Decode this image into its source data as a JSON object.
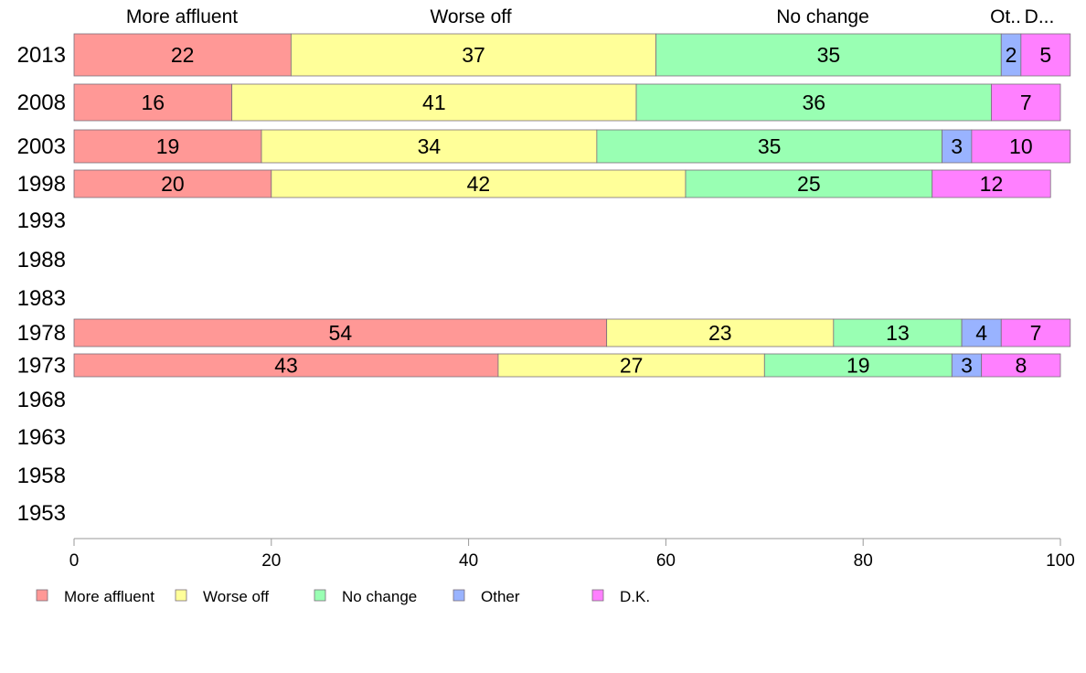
{
  "chart_data": {
    "type": "bar",
    "orientation": "horizontal",
    "stacked": true,
    "categories": [
      "2013",
      "2008",
      "2003",
      "1998",
      "1993",
      "1988",
      "1983",
      "1978",
      "1973",
      "1968",
      "1963",
      "1958",
      "1953"
    ],
    "series": [
      {
        "name": "More affluent",
        "color": "#ff9896",
        "values": [
          22,
          16,
          19,
          20,
          null,
          null,
          null,
          54,
          43,
          null,
          null,
          null,
          null
        ]
      },
      {
        "name": "Worse off",
        "color": "#ffff99",
        "values": [
          37,
          41,
          34,
          42,
          null,
          null,
          null,
          23,
          27,
          null,
          null,
          null,
          null
        ]
      },
      {
        "name": "No change",
        "color": "#99ffb3",
        "values": [
          35,
          36,
          35,
          25,
          null,
          null,
          null,
          13,
          19,
          null,
          null,
          null,
          null
        ]
      },
      {
        "name": "Other",
        "color": "#99b3ff",
        "values": [
          2,
          null,
          3,
          null,
          null,
          null,
          null,
          4,
          3,
          null,
          null,
          null,
          null
        ]
      },
      {
        "name": "D.K.",
        "color": "#ff80ff",
        "values": [
          5,
          7,
          10,
          12,
          null,
          null,
          null,
          7,
          8,
          null,
          null,
          null,
          null
        ]
      }
    ],
    "top_labels": [
      "More affluent",
      "Worse off",
      "No change",
      "Ot..",
      "D..."
    ],
    "xlim": [
      0,
      100
    ],
    "xticks": [
      "0",
      "20",
      "40",
      "60",
      "80",
      "100"
    ],
    "grid": false,
    "legend": "bottom"
  }
}
